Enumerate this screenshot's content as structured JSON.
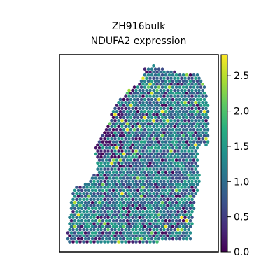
{
  "chart_data": {
    "type": "spatial-scatter",
    "title": "ZH916bulk",
    "subtitle": "NDUFA2 expression",
    "xlabel": "",
    "ylabel": "",
    "colorbar": {
      "colormap": "viridis",
      "range": [
        0.0,
        2.8
      ],
      "ticks": [
        0.0,
        0.5,
        1.0,
        1.5,
        2.0,
        2.5
      ],
      "tick_labels": [
        "0.0",
        "0.5",
        "1.0",
        "1.5",
        "2.0",
        "2.5"
      ]
    },
    "grid": false,
    "point_shape": "hexagonal spots",
    "value_summary": {
      "typical_range": [
        0.5,
        1.8
      ],
      "sparse_high_values": [
        2.0,
        2.8
      ],
      "low_value_region": "upper-left edge of tissue"
    }
  }
}
